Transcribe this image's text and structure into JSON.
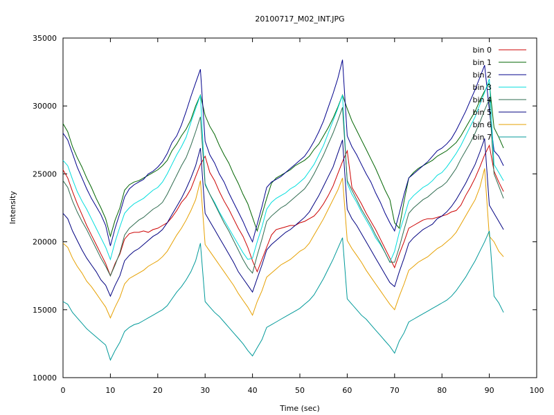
{
  "chart_data": {
    "type": "line",
    "title": "20100717_M02_INT.JPG",
    "xlabel": "Time (sec)",
    "ylabel": "Intensity",
    "xlim": [
      0,
      100
    ],
    "ylim": [
      10000,
      35000
    ],
    "xticks": [
      0,
      10,
      20,
      30,
      40,
      50,
      60,
      70,
      80,
      90,
      100
    ],
    "yticks": [
      10000,
      15000,
      20000,
      25000,
      30000,
      35000
    ],
    "legend_position": "top-right",
    "grid": false,
    "x": [
      0,
      1,
      2,
      3,
      4,
      5,
      6,
      7,
      8,
      9,
      10,
      11,
      12,
      13,
      14,
      15,
      16,
      17,
      18,
      19,
      20,
      21,
      22,
      23,
      24,
      25,
      26,
      27,
      28,
      29,
      30,
      31,
      32,
      33,
      34,
      35,
      36,
      37,
      38,
      39,
      40,
      41,
      42,
      43,
      44,
      45,
      46,
      47,
      48,
      49,
      50,
      51,
      52,
      53,
      54,
      55,
      56,
      57,
      58,
      59,
      60,
      61,
      62,
      63,
      64,
      65,
      66,
      67,
      68,
      69,
      70,
      71,
      72,
      73,
      74,
      75,
      76,
      77,
      78,
      79,
      80,
      81,
      82,
      83,
      84,
      85,
      86,
      87,
      88,
      89,
      90,
      91,
      92,
      93
    ],
    "series": [
      {
        "name": "bin 0",
        "color": "#cc0000",
        "values": [
          25300,
          24700,
          23700,
          22800,
          22000,
          21200,
          20500,
          19800,
          19100,
          18400,
          17500,
          18400,
          19100,
          20200,
          20600,
          20700,
          20700,
          20800,
          20700,
          20900,
          21000,
          21200,
          21400,
          21800,
          22300,
          22900,
          23300,
          23900,
          24800,
          25700,
          26300,
          25100,
          24500,
          23700,
          23000,
          22400,
          21700,
          21000,
          20400,
          19600,
          18600,
          17800,
          18700,
          19600,
          20500,
          20900,
          21000,
          21100,
          21200,
          21200,
          21400,
          21500,
          21700,
          21900,
          22300,
          22800,
          23400,
          24100,
          25000,
          25900,
          26700,
          24000,
          23400,
          22800,
          22100,
          21500,
          20900,
          20200,
          19500,
          18800,
          18100,
          19100,
          20000,
          21000,
          21200,
          21400,
          21600,
          21700,
          21700,
          21800,
          21900,
          22000,
          22200,
          22300,
          22700,
          23400,
          24000,
          24700,
          25500,
          26400,
          27100,
          25200,
          24400,
          23700
        ]
      },
      {
        "name": "bin 1",
        "color": "#006400",
        "values": [
          28700,
          28100,
          27000,
          26200,
          25500,
          24700,
          24000,
          23200,
          22500,
          21700,
          20400,
          21600,
          22500,
          23800,
          24200,
          24400,
          24500,
          24700,
          24900,
          25100,
          25300,
          25600,
          26000,
          26700,
          27200,
          27800,
          28300,
          29000,
          30000,
          30800,
          29300,
          28500,
          27900,
          27100,
          26400,
          25800,
          25000,
          24300,
          23500,
          22800,
          21800,
          20800,
          22000,
          23200,
          24300,
          24700,
          24900,
          25100,
          25300,
          25600,
          25800,
          26000,
          26300,
          26800,
          27200,
          27800,
          28400,
          29100,
          29900,
          30800,
          29800,
          28900,
          28200,
          27500,
          26800,
          26100,
          25400,
          24600,
          23800,
          23100,
          21400,
          21000,
          23000,
          24700,
          25100,
          25400,
          25600,
          25800,
          26000,
          26300,
          26500,
          26700,
          27000,
          27300,
          27800,
          28400,
          29000,
          29600,
          30400,
          31100,
          31700,
          28400,
          27700,
          26900
        ]
      },
      {
        "name": "bin 2",
        "color": "#00008b",
        "values": [
          28000,
          27500,
          26500,
          25500,
          24700,
          23900,
          23200,
          22600,
          22000,
          21200,
          19700,
          21000,
          22100,
          23300,
          23900,
          24200,
          24400,
          24600,
          25000,
          25200,
          25500,
          25900,
          26500,
          27300,
          27800,
          28600,
          29600,
          30700,
          31700,
          32700,
          27400,
          26400,
          25800,
          25000,
          24400,
          23600,
          22900,
          22200,
          21500,
          20700,
          20000,
          21300,
          22600,
          24000,
          24400,
          24600,
          24800,
          25100,
          25400,
          25700,
          26000,
          26300,
          26800,
          27400,
          28100,
          28900,
          29900,
          30900,
          32000,
          33400,
          27800,
          27000,
          26400,
          25700,
          25000,
          24400,
          23600,
          22900,
          22100,
          21400,
          20800,
          22100,
          23500,
          24700,
          25000,
          25300,
          25600,
          25900,
          26300,
          26700,
          26900,
          27200,
          27600,
          28200,
          28900,
          29600,
          30400,
          31200,
          32100,
          33000,
          29700,
          26700,
          26300,
          25600
        ]
      },
      {
        "name": "bin 3",
        "color": "#00dddd",
        "values": [
          26000,
          25600,
          24600,
          23700,
          23000,
          22400,
          21700,
          21000,
          20300,
          19600,
          18700,
          20000,
          21100,
          22100,
          22500,
          22800,
          23000,
          23200,
          23500,
          23800,
          24000,
          24400,
          25000,
          25700,
          26400,
          27000,
          27700,
          28800,
          29800,
          30800,
          24300,
          23500,
          22900,
          22200,
          21600,
          21000,
          20400,
          19800,
          19200,
          18700,
          18800,
          20000,
          21100,
          22400,
          22900,
          23200,
          23400,
          23600,
          23900,
          24100,
          24400,
          24700,
          25200,
          25700,
          26400,
          27100,
          28000,
          28900,
          29800,
          30800,
          24300,
          23500,
          22900,
          22200,
          21600,
          21000,
          20300,
          19800,
          19200,
          18500,
          19300,
          20700,
          21800,
          23000,
          23400,
          23700,
          24000,
          24200,
          24500,
          24900,
          25100,
          25500,
          26000,
          26500,
          27100,
          27800,
          28500,
          29200,
          30100,
          31000,
          32000,
          25700,
          25100,
          24500
        ]
      },
      {
        "name": "bin 4",
        "color": "#2e6b4f",
        "values": [
          24500,
          24000,
          23000,
          22200,
          21500,
          20900,
          20200,
          19500,
          18800,
          18200,
          17500,
          18300,
          19200,
          20500,
          21000,
          21300,
          21600,
          21800,
          22100,
          22400,
          22600,
          22900,
          23500,
          24200,
          24900,
          25600,
          26200,
          27100,
          28100,
          29200,
          24200,
          23500,
          22800,
          22100,
          21400,
          20800,
          20100,
          19400,
          18700,
          18100,
          17700,
          19000,
          20200,
          21500,
          21900,
          22200,
          22500,
          22700,
          23000,
          23300,
          23600,
          23900,
          24400,
          25000,
          25700,
          26400,
          27200,
          28000,
          28900,
          29900,
          24500,
          23800,
          23100,
          22400,
          21800,
          21200,
          20500,
          19900,
          19200,
          18500,
          18500,
          19600,
          20900,
          22100,
          22500,
          22800,
          23100,
          23300,
          23600,
          23900,
          24100,
          24400,
          24900,
          25400,
          26100,
          26700,
          27300,
          28000,
          28800,
          29700,
          30500,
          25000,
          24100,
          23200
        ]
      },
      {
        "name": "bin 5",
        "color": "#000080",
        "values": [
          22100,
          21700,
          20800,
          20100,
          19400,
          18800,
          18300,
          17800,
          17200,
          16800,
          16000,
          16800,
          17500,
          18600,
          19000,
          19300,
          19500,
          19800,
          20100,
          20400,
          20600,
          20900,
          21400,
          22000,
          22600,
          23200,
          23900,
          24700,
          25600,
          26900,
          22100,
          21500,
          20900,
          20300,
          19700,
          19100,
          18500,
          17800,
          17300,
          16800,
          16300,
          17300,
          18300,
          19400,
          19800,
          20100,
          20400,
          20700,
          20900,
          21200,
          21500,
          21800,
          22200,
          22800,
          23400,
          24100,
          24800,
          25500,
          26500,
          27500,
          22400,
          21700,
          21200,
          20600,
          20000,
          19400,
          18800,
          18200,
          17600,
          17000,
          16700,
          17800,
          18800,
          19900,
          20300,
          20600,
          20900,
          21100,
          21300,
          21700,
          21900,
          22200,
          22600,
          23100,
          23700,
          24300,
          25000,
          25700,
          26600,
          27600,
          22700,
          22100,
          21500,
          20900
        ]
      },
      {
        "name": "bin 6",
        "color": "#e6a000",
        "values": [
          19900,
          19600,
          18800,
          18200,
          17700,
          17100,
          16700,
          16200,
          15700,
          15200,
          14400,
          15200,
          15900,
          16900,
          17300,
          17500,
          17700,
          17900,
          18200,
          18400,
          18600,
          18900,
          19300,
          19900,
          20500,
          21000,
          21600,
          22300,
          23100,
          24500,
          19800,
          19300,
          18800,
          18300,
          17800,
          17300,
          16800,
          16200,
          15700,
          15200,
          14600,
          15600,
          16400,
          17400,
          17700,
          18000,
          18300,
          18500,
          18700,
          19000,
          19300,
          19500,
          19900,
          20500,
          21100,
          21700,
          22400,
          23100,
          23800,
          24700,
          20100,
          19500,
          19000,
          18500,
          17900,
          17400,
          16900,
          16400,
          15900,
          15400,
          15000,
          16000,
          16900,
          17900,
          18200,
          18500,
          18700,
          18900,
          19200,
          19500,
          19700,
          20000,
          20300,
          20700,
          21300,
          21900,
          22500,
          23100,
          24000,
          25400,
          20400,
          20000,
          19300,
          18900
        ]
      },
      {
        "name": "bin 7",
        "color": "#009999",
        "values": [
          15600,
          15400,
          14800,
          14400,
          14000,
          13600,
          13300,
          13000,
          12700,
          12400,
          11300,
          12000,
          12600,
          13400,
          13700,
          13900,
          14000,
          14200,
          14400,
          14600,
          14800,
          15000,
          15300,
          15800,
          16300,
          16700,
          17200,
          17800,
          18600,
          19900,
          15600,
          15200,
          14800,
          14500,
          14100,
          13700,
          13300,
          12900,
          12500,
          12000,
          11600,
          12200,
          12800,
          13700,
          13900,
          14100,
          14300,
          14500,
          14700,
          14900,
          15100,
          15400,
          15700,
          16100,
          16700,
          17300,
          18000,
          18700,
          19500,
          20300,
          15800,
          15400,
          15000,
          14600,
          14300,
          13900,
          13500,
          13100,
          12700,
          12300,
          11800,
          12700,
          13300,
          14100,
          14300,
          14500,
          14700,
          14900,
          15100,
          15300,
          15500,
          15700,
          16000,
          16400,
          16900,
          17400,
          18000,
          18600,
          19300,
          20000,
          20800,
          16000,
          15500,
          14800
        ]
      }
    ]
  }
}
